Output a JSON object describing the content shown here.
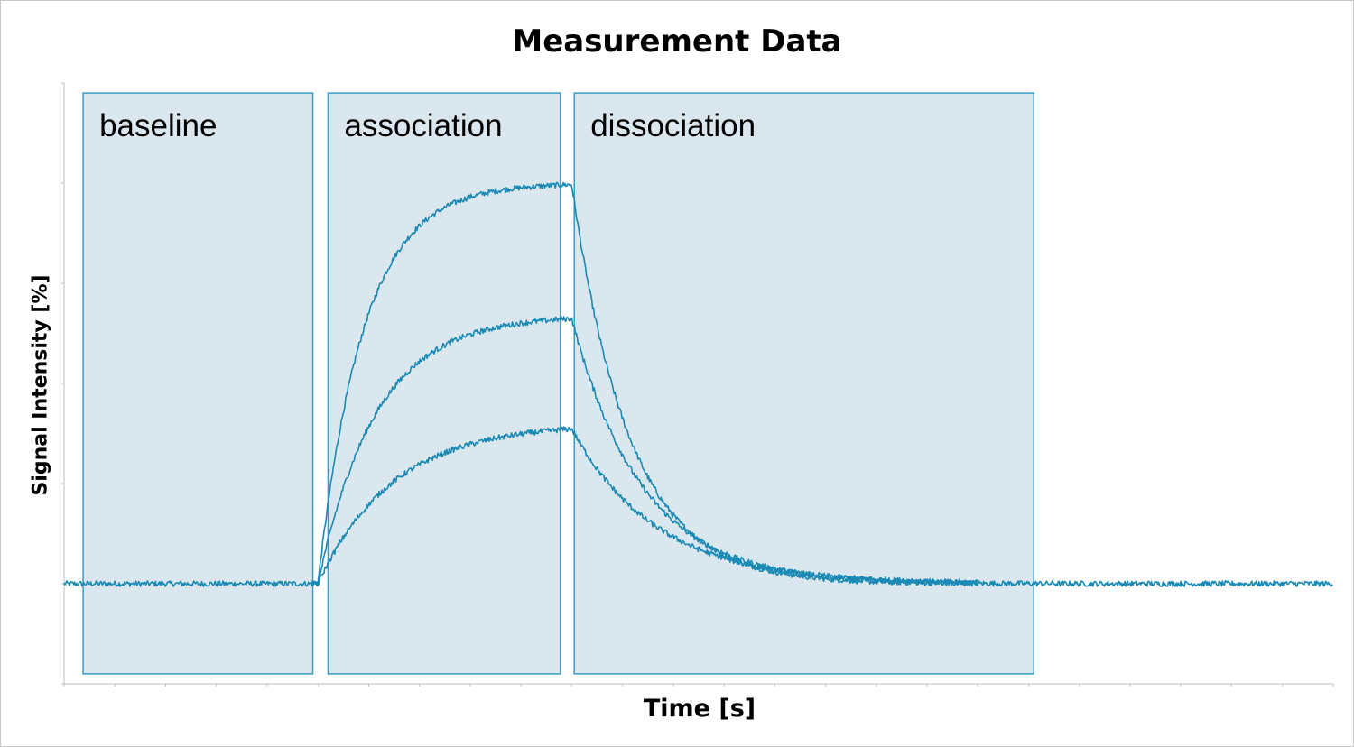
{
  "chart_data": {
    "type": "line",
    "title": "Measurement Data",
    "xlabel": "Time [s]",
    "ylabel": "Signal Intensity [%]",
    "xlim": [
      0,
      100
    ],
    "ylim": [
      -10,
      50
    ],
    "x_tick_count": 25,
    "y_tick_count": 6,
    "tick_labels_shown": false,
    "grid": false,
    "legend": "none",
    "line_color": "#1a8ab5",
    "phases": [
      {
        "label": "baseline",
        "x_start": 1.5,
        "x_end": 19.6
      },
      {
        "label": "association",
        "x_start": 20.8,
        "x_end": 39.1
      },
      {
        "label": "dissociation",
        "x_start": 40.2,
        "x_end": 76.4
      }
    ],
    "phase_fill": "#dbe7ee",
    "phase_border": "#3a9cc4",
    "phase_y_range": [
      -9,
      49
    ],
    "association_start": 20,
    "dissociation_start": 40,
    "series": [
      {
        "plateau": 40.0,
        "k_on": 0.28,
        "k_off": 0.22
      },
      {
        "plateau": 26.8,
        "k_on": 0.22,
        "k_off": 0.18
      },
      {
        "plateau": 16.0,
        "k_on": 0.17,
        "k_off": 0.15
      }
    ]
  }
}
